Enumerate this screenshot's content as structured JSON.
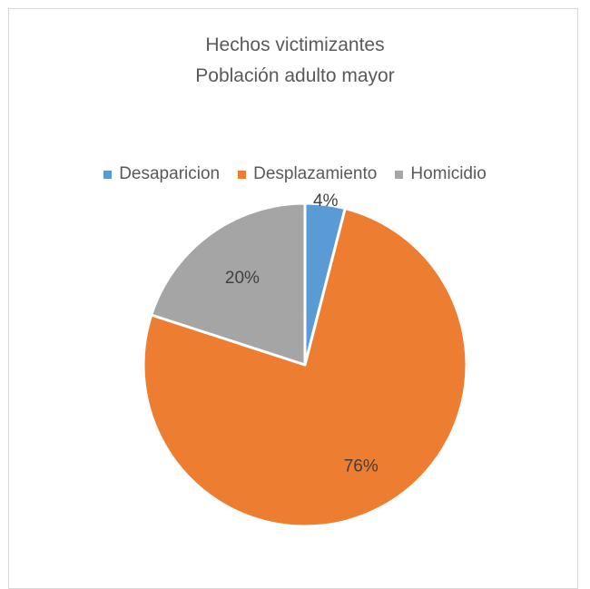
{
  "chart_data": {
    "type": "pie",
    "title": [
      "Hechos victimizantes",
      "Población adulto mayor"
    ],
    "categories": [
      "Desaparicion",
      "Desplazamiento",
      "Homicidio"
    ],
    "values": [
      4,
      76,
      20
    ],
    "data_labels": [
      "4%",
      "76%",
      "20%"
    ],
    "colors": [
      "#5b9bd5",
      "#ed7d31",
      "#a5a5a5"
    ],
    "legend_position": "top"
  }
}
